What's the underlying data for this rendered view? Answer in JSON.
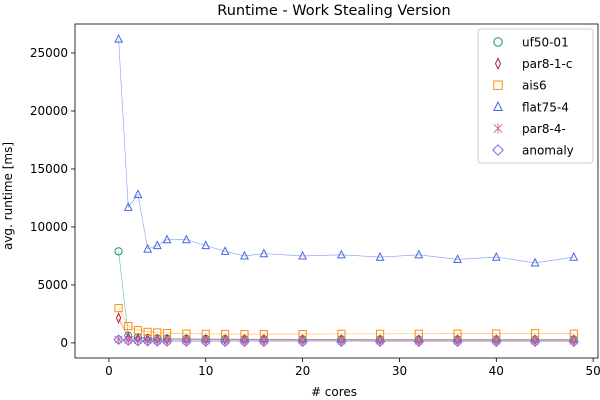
{
  "chart_data": {
    "type": "scatter",
    "title": "Runtime - Work Stealing Version",
    "xlabel": "# cores",
    "ylabel": "avg. runtime [ms]",
    "xlim": [
      -3.5,
      50.5
    ],
    "ylim": [
      -1300,
      27500
    ],
    "xticks": [
      0,
      10,
      20,
      30,
      40,
      50
    ],
    "yticks": [
      0,
      5000,
      10000,
      15000,
      20000,
      25000
    ],
    "x": [
      1,
      2,
      3,
      4,
      5,
      6,
      8,
      10,
      12,
      14,
      16,
      20,
      24,
      28,
      32,
      36,
      40,
      44,
      48
    ],
    "legend_position": "top-right",
    "series": [
      {
        "name": "uf50-01",
        "marker": "circle",
        "color": "#1a9080",
        "values": [
          7900,
          620,
          480,
          420,
          390,
          370,
          350,
          340,
          330,
          320,
          320,
          310,
          310,
          300,
          300,
          300,
          300,
          300,
          300
        ]
      },
      {
        "name": "par8-1-c",
        "marker": "thin-diamond",
        "color": "#b22222",
        "values": [
          2150,
          450,
          380,
          340,
          310,
          300,
          290,
          280,
          270,
          270,
          260,
          260,
          260,
          250,
          250,
          250,
          250,
          250,
          250
        ]
      },
      {
        "name": "ais6",
        "marker": "square",
        "color": "#ff8c00",
        "values": [
          3000,
          1450,
          1100,
          950,
          900,
          850,
          800,
          780,
          770,
          760,
          760,
          760,
          780,
          780,
          790,
          800,
          810,
          830,
          800
        ]
      },
      {
        "name": "flat75-4",
        "marker": "triangle",
        "color": "#4169e1",
        "values": [
          26200,
          11700,
          12800,
          8100,
          8400,
          8900,
          8900,
          8400,
          7900,
          7500,
          7700,
          7500,
          7600,
          7400,
          7600,
          7200,
          7400,
          6900,
          7400
        ]
      },
      {
        "name": "par8-4-",
        "marker": "x",
        "color": "#db7093",
        "values": [
          300,
          260,
          240,
          220,
          210,
          200,
          200,
          200,
          195,
          190,
          190,
          190,
          190,
          185,
          185,
          185,
          185,
          185,
          185
        ]
      },
      {
        "name": "anomaly",
        "marker": "diamond",
        "color": "#7b68ee",
        "values": [
          280,
          200,
          160,
          140,
          130,
          120,
          110,
          110,
          100,
          100,
          100,
          100,
          100,
          100,
          100,
          100,
          100,
          100,
          100
        ]
      }
    ]
  }
}
